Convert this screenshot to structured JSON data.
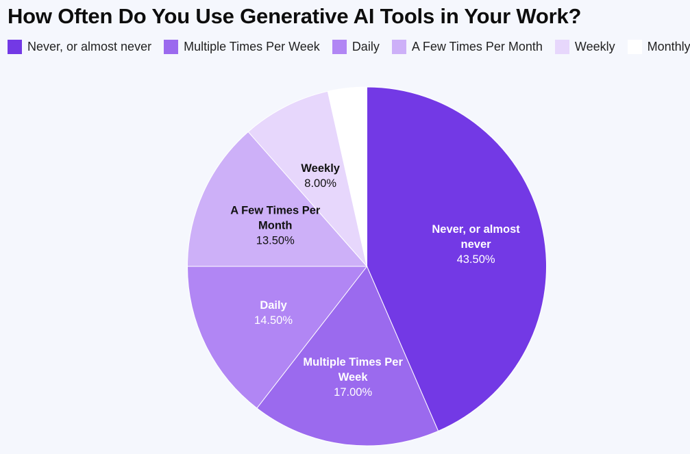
{
  "header": {
    "title": "How Often Do You Use Generative AI Tools in Your Work?"
  },
  "legend": [
    {
      "label": "Never, or almost never",
      "color": "#7339E5"
    },
    {
      "label": "Multiple Times Per Week",
      "color": "#9B6AEE"
    },
    {
      "label": "Daily",
      "color": "#B186F4"
    },
    {
      "label": "A Few Times Per Month",
      "color": "#CDB0F8"
    },
    {
      "label": "Weekly",
      "color": "#E7D7FC"
    },
    {
      "label": "Monthly",
      "color": "#FFFFFF"
    }
  ],
  "slices": [
    {
      "label_lines": [
        "Never, or almost",
        "never"
      ],
      "pct_text": "43.50%",
      "text_color": "#FFFFFF"
    },
    {
      "label_lines": [
        "Multiple Times Per",
        "Week"
      ],
      "pct_text": "17.00%",
      "text_color": "#FFFFFF"
    },
    {
      "label_lines": [
        "Daily"
      ],
      "pct_text": "14.50%",
      "text_color": "#FFFFFF"
    },
    {
      "label_lines": [
        "A Few Times Per",
        "Month"
      ],
      "pct_text": "13.50%",
      "text_color": "#111111"
    },
    {
      "label_lines": [
        "Weekly"
      ],
      "pct_text": "8.00%",
      "text_color": "#111111"
    },
    {
      "label_lines": [],
      "pct_text": "",
      "text_color": "#111111"
    }
  ],
  "chart_data": {
    "type": "pie",
    "title": "How Often Do You Use Generative AI Tools in Your Work?",
    "categories": [
      "Never, or almost never",
      "Multiple Times Per Week",
      "Daily",
      "A Few Times Per Month",
      "Weekly",
      "Monthly"
    ],
    "values": [
      43.5,
      17.0,
      14.5,
      13.5,
      8.0,
      3.5
    ],
    "unit": "%",
    "colors": [
      "#7339E5",
      "#9B6AEE",
      "#B186F4",
      "#CDB0F8",
      "#E7D7FC",
      "#FFFFFF"
    ],
    "start_angle": "12 o'clock",
    "direction": "clockwise",
    "legend_position": "top",
    "data_labels": "inside, category name + percentage (Monthly unlabeled)"
  }
}
